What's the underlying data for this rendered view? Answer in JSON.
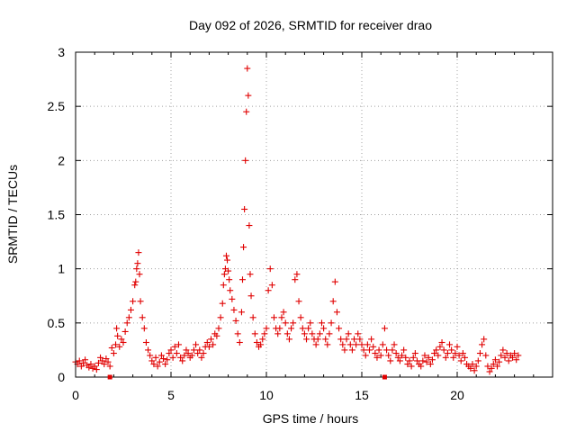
{
  "chart_data": {
    "type": "scatter",
    "title": "Day 092 of 2026, SRMTID for receiver drao",
    "xlabel": "GPS time / hours",
    "ylabel": "SRMTID / TECUs",
    "xlim": [
      0,
      25
    ],
    "ylim": [
      0,
      3
    ],
    "x_ticks": [
      0,
      5,
      10,
      15,
      20
    ],
    "x_tick_labels": [
      "0",
      "5",
      "10",
      "15",
      "20"
    ],
    "y_ticks": [
      0,
      0.5,
      1,
      1.5,
      2,
      2.5,
      3
    ],
    "y_tick_labels": [
      "0",
      "0.5",
      "1",
      "1.5",
      "2",
      "2.5",
      "3"
    ],
    "grid": true,
    "marker": "+",
    "series": [
      {
        "name": "SRMTID",
        "color": "#e00000",
        "points": [
          [
            0.0,
            0.14
          ],
          [
            0.1,
            0.12
          ],
          [
            0.2,
            0.15
          ],
          [
            0.3,
            0.1
          ],
          [
            0.4,
            0.13
          ],
          [
            0.5,
            0.16
          ],
          [
            0.6,
            0.11
          ],
          [
            0.7,
            0.09
          ],
          [
            0.8,
            0.12
          ],
          [
            0.9,
            0.08
          ],
          [
            1.0,
            0.1
          ],
          [
            1.1,
            0.07
          ],
          [
            1.2,
            0.13
          ],
          [
            1.3,
            0.18
          ],
          [
            1.4,
            0.15
          ],
          [
            1.5,
            0.12
          ],
          [
            1.6,
            0.17
          ],
          [
            1.7,
            0.14
          ],
          [
            1.8,
            0.1
          ],
          [
            1.9,
            0.27
          ],
          [
            2.0,
            0.22
          ],
          [
            2.1,
            0.3
          ],
          [
            2.15,
            0.45
          ],
          [
            2.2,
            0.38
          ],
          [
            2.3,
            0.28
          ],
          [
            2.4,
            0.35
          ],
          [
            2.5,
            0.32
          ],
          [
            2.6,
            0.42
          ],
          [
            2.7,
            0.5
          ],
          [
            2.8,
            0.55
          ],
          [
            2.9,
            0.62
          ],
          [
            3.0,
            0.7
          ],
          [
            3.1,
            0.85
          ],
          [
            3.15,
            0.88
          ],
          [
            3.2,
            1.0
          ],
          [
            3.25,
            1.05
          ],
          [
            3.3,
            1.15
          ],
          [
            3.35,
            0.95
          ],
          [
            3.4,
            0.7
          ],
          [
            3.5,
            0.55
          ],
          [
            3.6,
            0.45
          ],
          [
            3.7,
            0.32
          ],
          [
            3.8,
            0.25
          ],
          [
            3.9,
            0.2
          ],
          [
            4.0,
            0.15
          ],
          [
            4.1,
            0.12
          ],
          [
            4.2,
            0.18
          ],
          [
            4.3,
            0.1
          ],
          [
            4.4,
            0.14
          ],
          [
            4.5,
            0.2
          ],
          [
            4.6,
            0.17
          ],
          [
            4.7,
            0.12
          ],
          [
            4.8,
            0.16
          ],
          [
            4.9,
            0.22
          ],
          [
            5.0,
            0.25
          ],
          [
            5.1,
            0.18
          ],
          [
            5.2,
            0.28
          ],
          [
            5.3,
            0.22
          ],
          [
            5.4,
            0.3
          ],
          [
            5.5,
            0.18
          ],
          [
            5.6,
            0.15
          ],
          [
            5.7,
            0.2
          ],
          [
            5.8,
            0.25
          ],
          [
            5.9,
            0.22
          ],
          [
            6.0,
            0.18
          ],
          [
            6.1,
            0.2
          ],
          [
            6.2,
            0.25
          ],
          [
            6.3,
            0.3
          ],
          [
            6.4,
            0.22
          ],
          [
            6.5,
            0.25
          ],
          [
            6.6,
            0.18
          ],
          [
            6.7,
            0.22
          ],
          [
            6.8,
            0.28
          ],
          [
            6.9,
            0.32
          ],
          [
            7.0,
            0.28
          ],
          [
            7.1,
            0.35
          ],
          [
            7.2,
            0.3
          ],
          [
            7.3,
            0.4
          ],
          [
            7.4,
            0.38
          ],
          [
            7.5,
            0.45
          ],
          [
            7.6,
            0.55
          ],
          [
            7.7,
            0.68
          ],
          [
            7.75,
            0.85
          ],
          [
            7.8,
            0.95
          ],
          [
            7.85,
            1.0
          ],
          [
            7.9,
            1.12
          ],
          [
            7.95,
            1.08
          ],
          [
            8.0,
            0.98
          ],
          [
            8.05,
            0.9
          ],
          [
            8.1,
            0.8
          ],
          [
            8.2,
            0.72
          ],
          [
            8.3,
            0.62
          ],
          [
            8.4,
            0.52
          ],
          [
            8.5,
            0.4
          ],
          [
            8.6,
            0.32
          ],
          [
            8.7,
            0.6
          ],
          [
            8.75,
            0.9
          ],
          [
            8.8,
            1.2
          ],
          [
            8.85,
            1.55
          ],
          [
            8.9,
            2.0
          ],
          [
            8.95,
            2.45
          ],
          [
            9.0,
            2.85
          ],
          [
            9.05,
            2.6
          ],
          [
            9.1,
            1.4
          ],
          [
            9.15,
            0.95
          ],
          [
            9.2,
            0.75
          ],
          [
            9.3,
            0.55
          ],
          [
            9.4,
            0.4
          ],
          [
            9.5,
            0.32
          ],
          [
            9.6,
            0.28
          ],
          [
            9.7,
            0.3
          ],
          [
            9.8,
            0.35
          ],
          [
            9.9,
            0.4
          ],
          [
            10.0,
            0.45
          ],
          [
            10.1,
            0.8
          ],
          [
            10.2,
            1.0
          ],
          [
            10.3,
            0.85
          ],
          [
            10.4,
            0.55
          ],
          [
            10.5,
            0.45
          ],
          [
            10.6,
            0.4
          ],
          [
            10.7,
            0.45
          ],
          [
            10.8,
            0.55
          ],
          [
            10.9,
            0.6
          ],
          [
            11.0,
            0.5
          ],
          [
            11.1,
            0.4
          ],
          [
            11.2,
            0.35
          ],
          [
            11.3,
            0.45
          ],
          [
            11.4,
            0.5
          ],
          [
            11.5,
            0.9
          ],
          [
            11.6,
            0.95
          ],
          [
            11.7,
            0.7
          ],
          [
            11.8,
            0.55
          ],
          [
            11.9,
            0.45
          ],
          [
            12.0,
            0.4
          ],
          [
            12.1,
            0.35
          ],
          [
            12.2,
            0.45
          ],
          [
            12.3,
            0.5
          ],
          [
            12.4,
            0.4
          ],
          [
            12.5,
            0.35
          ],
          [
            12.6,
            0.3
          ],
          [
            12.7,
            0.35
          ],
          [
            12.8,
            0.4
          ],
          [
            12.9,
            0.5
          ],
          [
            13.0,
            0.45
          ],
          [
            13.1,
            0.35
          ],
          [
            13.2,
            0.3
          ],
          [
            13.3,
            0.4
          ],
          [
            13.4,
            0.5
          ],
          [
            13.5,
            0.7
          ],
          [
            13.6,
            0.88
          ],
          [
            13.7,
            0.6
          ],
          [
            13.8,
            0.45
          ],
          [
            13.9,
            0.35
          ],
          [
            14.0,
            0.3
          ],
          [
            14.1,
            0.25
          ],
          [
            14.2,
            0.35
          ],
          [
            14.3,
            0.4
          ],
          [
            14.4,
            0.3
          ],
          [
            14.5,
            0.25
          ],
          [
            14.6,
            0.35
          ],
          [
            14.7,
            0.3
          ],
          [
            14.8,
            0.4
          ],
          [
            14.9,
            0.35
          ],
          [
            15.0,
            0.3
          ],
          [
            15.1,
            0.25
          ],
          [
            15.2,
            0.2
          ],
          [
            15.3,
            0.3
          ],
          [
            15.4,
            0.25
          ],
          [
            15.5,
            0.35
          ],
          [
            15.6,
            0.28
          ],
          [
            15.7,
            0.22
          ],
          [
            15.8,
            0.18
          ],
          [
            15.9,
            0.25
          ],
          [
            16.0,
            0.2
          ],
          [
            16.1,
            0.3
          ],
          [
            16.2,
            0.45
          ],
          [
            16.3,
            0.25
          ],
          [
            16.4,
            0.2
          ],
          [
            16.5,
            0.15
          ],
          [
            16.6,
            0.25
          ],
          [
            16.7,
            0.3
          ],
          [
            16.8,
            0.22
          ],
          [
            16.9,
            0.18
          ],
          [
            17.0,
            0.15
          ],
          [
            17.1,
            0.2
          ],
          [
            17.2,
            0.25
          ],
          [
            17.3,
            0.18
          ],
          [
            17.4,
            0.12
          ],
          [
            17.5,
            0.15
          ],
          [
            17.6,
            0.1
          ],
          [
            17.7,
            0.18
          ],
          [
            17.8,
            0.22
          ],
          [
            17.9,
            0.15
          ],
          [
            18.0,
            0.12
          ],
          [
            18.1,
            0.1
          ],
          [
            18.2,
            0.15
          ],
          [
            18.3,
            0.2
          ],
          [
            18.4,
            0.14
          ],
          [
            18.5,
            0.18
          ],
          [
            18.6,
            0.12
          ],
          [
            18.7,
            0.16
          ],
          [
            18.8,
            0.22
          ],
          [
            18.9,
            0.25
          ],
          [
            19.0,
            0.2
          ],
          [
            19.1,
            0.28
          ],
          [
            19.2,
            0.32
          ],
          [
            19.3,
            0.25
          ],
          [
            19.4,
            0.18
          ],
          [
            19.5,
            0.22
          ],
          [
            19.6,
            0.3
          ],
          [
            19.7,
            0.25
          ],
          [
            19.8,
            0.18
          ],
          [
            19.9,
            0.22
          ],
          [
            20.0,
            0.28
          ],
          [
            20.1,
            0.2
          ],
          [
            20.2,
            0.15
          ],
          [
            20.3,
            0.22
          ],
          [
            20.4,
            0.18
          ],
          [
            20.5,
            0.12
          ],
          [
            20.6,
            0.1
          ],
          [
            20.7,
            0.08
          ],
          [
            20.8,
            0.12
          ],
          [
            20.9,
            0.06
          ],
          [
            21.0,
            0.1
          ],
          [
            21.1,
            0.15
          ],
          [
            21.2,
            0.22
          ],
          [
            21.3,
            0.3
          ],
          [
            21.4,
            0.35
          ],
          [
            21.5,
            0.2
          ],
          [
            21.6,
            0.1
          ],
          [
            21.7,
            0.05
          ],
          [
            21.8,
            0.08
          ],
          [
            21.9,
            0.12
          ],
          [
            22.0,
            0.16
          ],
          [
            22.1,
            0.1
          ],
          [
            22.2,
            0.14
          ],
          [
            22.3,
            0.2
          ],
          [
            22.4,
            0.25
          ],
          [
            22.5,
            0.18
          ],
          [
            22.6,
            0.22
          ],
          [
            22.7,
            0.15
          ],
          [
            22.8,
            0.2
          ],
          [
            22.9,
            0.18
          ],
          [
            23.0,
            0.22
          ],
          [
            23.1,
            0.16
          ],
          [
            23.2,
            0.2
          ]
        ]
      }
    ],
    "axis_markers": [
      1.8,
      16.2
    ]
  }
}
